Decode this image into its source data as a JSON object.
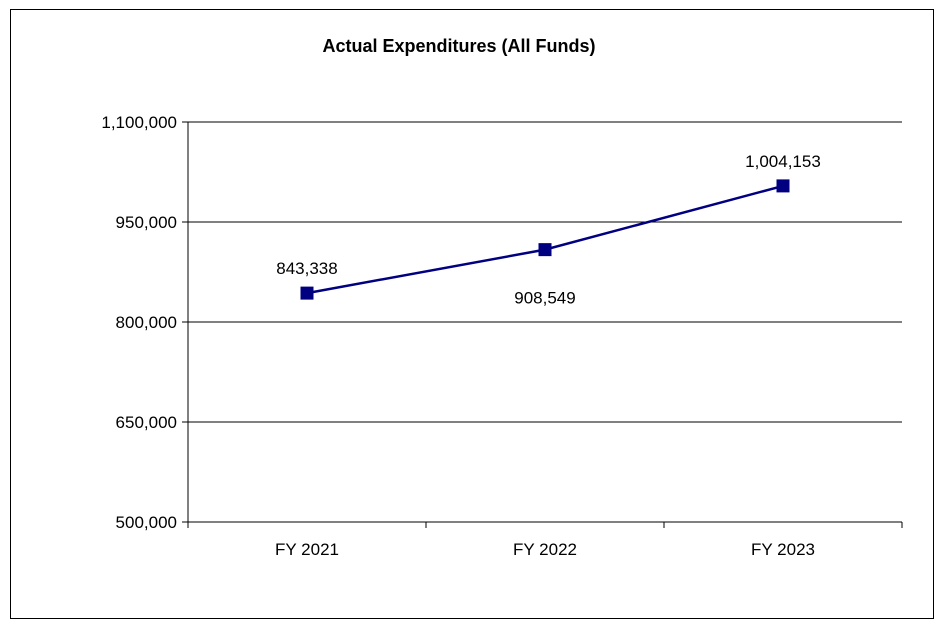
{
  "chart_data": {
    "type": "line",
    "title": "Actual Expenditures (All Funds)",
    "categories": [
      "FY 2021",
      "FY 2022",
      "FY 2023"
    ],
    "series": [
      {
        "values": [
          843338,
          908549,
          1004153
        ]
      }
    ],
    "data_labels": [
      "843,338",
      "908,549",
      "1,004,153"
    ],
    "y_ticks": [
      500000,
      650000,
      800000,
      950000,
      1100000
    ],
    "y_tick_labels": [
      "500,000",
      "650,000",
      "800,000",
      "950,000",
      "1,100,000"
    ],
    "ylim": [
      500000,
      1100000
    ],
    "xlabel": "",
    "ylabel": "",
    "grid": true,
    "legend": "none",
    "line_color": "#000080",
    "marker": "square"
  }
}
